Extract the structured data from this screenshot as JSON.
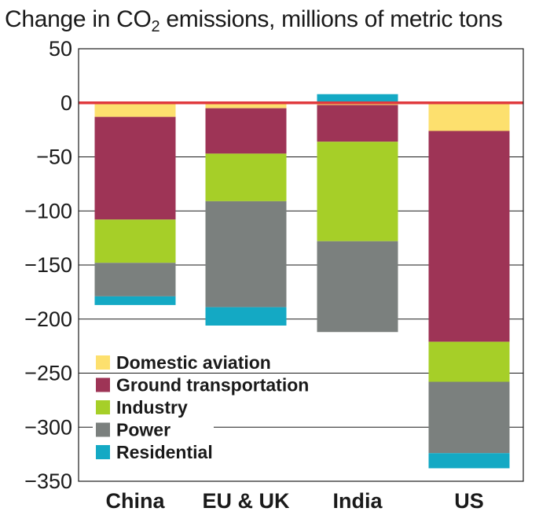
{
  "chart_data": {
    "type": "bar",
    "stacked": true,
    "title_main": "Change in CO",
    "title_sub": "2",
    "title_rest": " emissions, millions of metric tons",
    "ylim": [
      -350,
      50
    ],
    "yticks": [
      50,
      0,
      -50,
      -100,
      -150,
      -200,
      -250,
      -300,
      -350
    ],
    "ytick_labels": [
      "50",
      "0",
      "−50",
      "−100",
      "−150",
      "−200",
      "−250",
      "−300",
      "−350"
    ],
    "categories": [
      "China",
      "EU & UK",
      "India",
      "US"
    ],
    "series": [
      {
        "name": "Domestic aviation",
        "color": "#fde06e",
        "values": [
          -13,
          -5,
          -2,
          -26
        ]
      },
      {
        "name": "Ground transportation",
        "color": "#9e3456",
        "values": [
          -95,
          -42,
          -34,
          -195
        ]
      },
      {
        "name": "Industry",
        "color": "#a6cf28",
        "values": [
          -40,
          -44,
          -92,
          -37
        ]
      },
      {
        "name": "Power",
        "color": "#7b807e",
        "values": [
          -31,
          -98,
          -84,
          -66
        ]
      },
      {
        "name": "Residential",
        "color": "#14a9c4",
        "values": [
          -8,
          -17,
          8,
          -14
        ]
      }
    ],
    "zero_line_color": "#e03a3e",
    "legend_position": "bottom-left"
  }
}
